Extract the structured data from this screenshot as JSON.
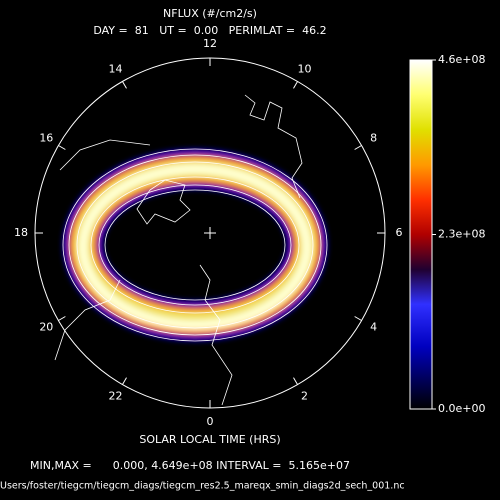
{
  "title": "NFLUX (#/cm2/s)",
  "subtitle": "DAY =  81   UT =  0.00   PERIMLAT =  46.2",
  "hour_labels": [
    "12",
    "14",
    "16",
    "18",
    "20",
    "22",
    "0",
    "2",
    "4",
    "6",
    "8",
    "10"
  ],
  "axis_label": "SOLAR LOCAL TIME (HRS)",
  "colorbar": {
    "lim": [
      0,
      460000000
    ],
    "ticks": [
      {
        "value": 460000000,
        "label": "4.6e+08"
      },
      {
        "value": 230000000,
        "label": "2.3e+08"
      },
      {
        "value": 0,
        "label": "0.0e+00"
      }
    ]
  },
  "stats_line": "MIN,MAX =      0.000, 4.649e+08 INTERVAL =  5.165e+07",
  "file_path": "Users/foster/tiegcm/tiegcm_diags/tiegcm_res2.5_mareqx_smin_diags2d_sech_001.nc"
}
